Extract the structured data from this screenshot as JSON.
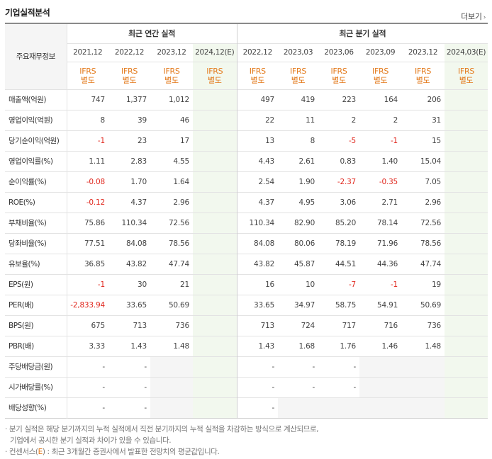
{
  "header": {
    "title": "기업실적분석",
    "more_label": "더보기"
  },
  "table": {
    "corner_label": "주요재무정보",
    "annual_group_label": "최근 연간 실적",
    "quarter_group_label": "최근 분기 실적",
    "periods": [
      "2021,12",
      "2022,12",
      "2023,12",
      "2024,12(E)",
      "2022,12",
      "2023,03",
      "2023,06",
      "2023,09",
      "2023,12",
      "2024,03(E)"
    ],
    "ifrs_line1": "IFRS",
    "ifrs_line2": "별도",
    "rows": [
      {
        "label": "매출액(억원)",
        "values": [
          "747",
          "1,377",
          "1,012",
          "",
          "497",
          "419",
          "223",
          "164",
          "206",
          ""
        ]
      },
      {
        "label": "영업이익(억원)",
        "values": [
          "8",
          "39",
          "46",
          "",
          "22",
          "11",
          "2",
          "2",
          "31",
          ""
        ]
      },
      {
        "label": "당기순이익(억원)",
        "values": [
          "-1",
          "23",
          "17",
          "",
          "13",
          "8",
          "-5",
          "-1",
          "15",
          ""
        ]
      },
      {
        "label": "영업이익률(%)",
        "values": [
          "1.11",
          "2.83",
          "4.55",
          "",
          "4.43",
          "2.61",
          "0.83",
          "1.40",
          "15.04",
          ""
        ]
      },
      {
        "label": "순이익률(%)",
        "values": [
          "-0.08",
          "1.70",
          "1.64",
          "",
          "2.54",
          "1.90",
          "-2.37",
          "-0.35",
          "7.05",
          ""
        ]
      },
      {
        "label": "ROE(%)",
        "values": [
          "-0.12",
          "4.37",
          "2.96",
          "",
          "4.37",
          "4.95",
          "3.06",
          "2.71",
          "2.96",
          ""
        ]
      },
      {
        "label": "부채비율(%)",
        "values": [
          "75.86",
          "110.34",
          "72.56",
          "",
          "110.34",
          "82.90",
          "85.20",
          "78.14",
          "72.56",
          ""
        ]
      },
      {
        "label": "당좌비율(%)",
        "values": [
          "77.51",
          "84.08",
          "78.56",
          "",
          "84.08",
          "80.06",
          "78.19",
          "71.96",
          "78.56",
          ""
        ]
      },
      {
        "label": "유보율(%)",
        "values": [
          "36.85",
          "43.82",
          "47.74",
          "",
          "43.82",
          "45.87",
          "44.51",
          "44.36",
          "47.74",
          ""
        ]
      },
      {
        "label": "EPS(원)",
        "values": [
          "-1",
          "30",
          "21",
          "",
          "16",
          "10",
          "-7",
          "-1",
          "19",
          ""
        ]
      },
      {
        "label": "PER(배)",
        "values": [
          "-2,833.94",
          "33.65",
          "50.69",
          "",
          "33.65",
          "34.97",
          "58.75",
          "54.91",
          "50.69",
          ""
        ]
      },
      {
        "label": "BPS(원)",
        "values": [
          "675",
          "713",
          "736",
          "",
          "713",
          "724",
          "717",
          "716",
          "736",
          ""
        ]
      },
      {
        "label": "PBR(배)",
        "values": [
          "3.33",
          "1.43",
          "1.48",
          "",
          "1.43",
          "1.68",
          "1.76",
          "1.46",
          "1.48",
          ""
        ]
      },
      {
        "label": "주당배당금(원)",
        "values": [
          "-",
          "-",
          "",
          "",
          "-",
          "-",
          "-",
          "",
          "",
          ""
        ]
      },
      {
        "label": "시가배당률(%)",
        "values": [
          "-",
          "-",
          "",
          "",
          "-",
          "-",
          "-",
          "",
          "",
          ""
        ]
      },
      {
        "label": "배당성향(%)",
        "values": [
          "-",
          "-",
          "",
          "",
          "-",
          "",
          "",
          "",
          "",
          ""
        ]
      }
    ]
  },
  "notes": {
    "line1": "· 분기 실적은 해당 분기까지의 누적 실적에서 직전 분기까지의 누적 실적을 차감하는 방식으로 계산되므로,",
    "line2": "기업에서 공시한 분기 실적과 차이가 있을 수 있습니다.",
    "line3_prefix": "· 컨센서스(",
    "line3_e": "E",
    "line3_suffix": ") : 최근 3개월간 증권사에서 발표한 전망치의 평균값입니다."
  },
  "colors": {
    "negative": "#e0261c",
    "ifrs": "#e3791a",
    "estimate_bg": "#f2f8ee",
    "shaded_bg": "#f5f5f5"
  }
}
